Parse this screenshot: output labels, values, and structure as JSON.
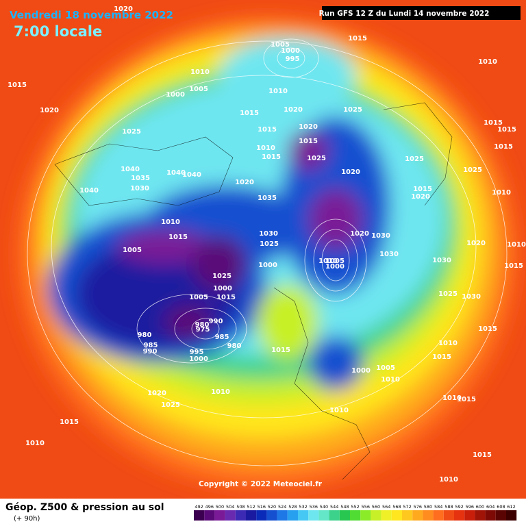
{
  "header": {
    "date": "Vendredi 18 novembre 2022",
    "time": "7:00 locale",
    "run": "Run GFS 12 Z du Lundi 14 novembre 2022"
  },
  "map": {
    "copyright": "Copyright © 2022 Meteociel.fr",
    "isobar_labels": [
      "1020",
      "1015",
      "1020",
      "1025",
      "1040",
      "1035",
      "1030",
      "1040",
      "1040",
      "1040",
      "1010",
      "1005",
      "1000",
      "1005",
      "1000",
      "995",
      "1015",
      "1010",
      "1015",
      "1020",
      "1025",
      "1010",
      "1020",
      "1015",
      "1015",
      "1010",
      "1015",
      "1025",
      "1020",
      "1035",
      "1020",
      "1025",
      "1015",
      "1020",
      "1010",
      "1015",
      "1005",
      "1030",
      "1025",
      "1020",
      "1030",
      "1010",
      "1005",
      "1000",
      "1030",
      "1030",
      "1000",
      "1025",
      "1000",
      "1005",
      "1015",
      "1025",
      "1030",
      "990",
      "975",
      "980",
      "985",
      "980",
      "985",
      "990",
      "980",
      "995",
      "1000",
      "1015",
      "1010",
      "1015",
      "1015",
      "1000",
      "1005",
      "1010",
      "1010",
      "1020",
      "1025",
      "1010",
      "1015",
      "1010",
      "1015",
      "1010",
      "1015",
      "1010",
      "1015",
      "1015",
      "1015",
      "1025",
      "1010",
      "1020",
      "1010",
      "1015"
    ]
  },
  "legend": {
    "title": "Géop. Z500 & pression au sol",
    "lead_time": "(+ 90h)",
    "scale": {
      "ticks": [
        492,
        496,
        500,
        504,
        508,
        512,
        516,
        520,
        524,
        528,
        532,
        536,
        540,
        544,
        548,
        552,
        556,
        560,
        564,
        568,
        572,
        576,
        580,
        584,
        588,
        592,
        596,
        600,
        604,
        608,
        612
      ],
      "colors": [
        "#3c0050",
        "#5a0a78",
        "#7a1a96",
        "#6a2ab0",
        "#3c2ab4",
        "#1a1aa0",
        "#0a2ab8",
        "#1450d0",
        "#1e78e6",
        "#28a0f0",
        "#46c8f5",
        "#6ee6f0",
        "#64e6c8",
        "#3cd28c",
        "#28c850",
        "#50dc32",
        "#8ceb28",
        "#c8f028",
        "#f0f028",
        "#ffe61e",
        "#ffc81e",
        "#ffaa1e",
        "#ff8c1e",
        "#ff6e1e",
        "#f04b14",
        "#e6320f",
        "#c81e0a",
        "#a01408",
        "#7d0a05",
        "#5a0503",
        "#3c0000"
      ]
    }
  }
}
